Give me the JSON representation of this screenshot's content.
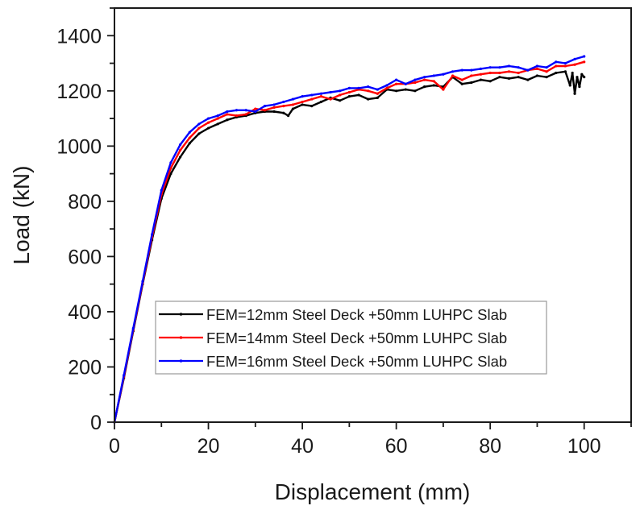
{
  "chart_data": {
    "type": "line",
    "title": "",
    "xlabel": "Displacement (mm)",
    "ylabel": "Load (kN)",
    "xlim": [
      0,
      110
    ],
    "ylim": [
      0,
      1500
    ],
    "xticks": [
      0,
      20,
      40,
      60,
      80,
      100
    ],
    "yticks": [
      0,
      200,
      400,
      600,
      800,
      1000,
      1200,
      1400
    ],
    "x_minor_step": 10,
    "y_minor_step": 100,
    "grid": false,
    "legend_position": "lower right (inside plot, center-bottom)",
    "series": [
      {
        "name": "FEM=12mm Steel Deck +50mm LUHPC Slab",
        "color": "#000000",
        "x": [
          0,
          2,
          4,
          6,
          8,
          10,
          12,
          14,
          16,
          18,
          20,
          22,
          24,
          26,
          28,
          30,
          32,
          34,
          36,
          37,
          38,
          40,
          42,
          44,
          46,
          48,
          50,
          52,
          54,
          56,
          58,
          60,
          62,
          64,
          66,
          68,
          70,
          72,
          74,
          76,
          78,
          80,
          82,
          84,
          86,
          88,
          90,
          92,
          94,
          96,
          97,
          97.5,
          98,
          98.5,
          99,
          99.5,
          100
        ],
        "y": [
          0,
          160,
          330,
          500,
          660,
          810,
          900,
          960,
          1010,
          1045,
          1065,
          1080,
          1095,
          1105,
          1110,
          1120,
          1125,
          1125,
          1120,
          1110,
          1135,
          1150,
          1145,
          1160,
          1175,
          1165,
          1180,
          1185,
          1170,
          1175,
          1205,
          1200,
          1205,
          1200,
          1215,
          1220,
          1215,
          1250,
          1225,
          1230,
          1240,
          1235,
          1250,
          1245,
          1250,
          1240,
          1255,
          1250,
          1265,
          1270,
          1220,
          1265,
          1190,
          1250,
          1215,
          1260,
          1250
        ]
      },
      {
        "name": "FEM=14mm Steel Deck +50mm LUHPC Slab",
        "color": "#ff0000",
        "x": [
          0,
          2,
          4,
          6,
          8,
          10,
          12,
          14,
          16,
          18,
          20,
          22,
          24,
          26,
          28,
          30,
          32,
          34,
          36,
          38,
          40,
          42,
          44,
          46,
          48,
          50,
          52,
          54,
          56,
          58,
          60,
          62,
          64,
          66,
          68,
          70,
          72,
          74,
          76,
          78,
          80,
          82,
          84,
          86,
          88,
          90,
          92,
          94,
          96,
          98,
          100
        ],
        "y": [
          0,
          165,
          335,
          505,
          670,
          825,
          920,
          985,
          1030,
          1065,
          1085,
          1100,
          1115,
          1110,
          1115,
          1135,
          1130,
          1140,
          1145,
          1150,
          1160,
          1170,
          1180,
          1170,
          1185,
          1195,
          1205,
          1200,
          1190,
          1210,
          1225,
          1225,
          1230,
          1240,
          1235,
          1205,
          1255,
          1240,
          1255,
          1260,
          1265,
          1265,
          1270,
          1265,
          1275,
          1280,
          1270,
          1290,
          1290,
          1295,
          1305
        ]
      },
      {
        "name": "FEM=16mm Steel Deck +50mm LUHPC Slab",
        "color": "#0000ff",
        "x": [
          0,
          2,
          4,
          6,
          8,
          10,
          12,
          14,
          16,
          18,
          20,
          22,
          24,
          26,
          28,
          30,
          32,
          34,
          36,
          38,
          40,
          42,
          44,
          46,
          48,
          50,
          52,
          54,
          56,
          58,
          60,
          62,
          64,
          66,
          68,
          70,
          72,
          74,
          76,
          78,
          80,
          82,
          84,
          86,
          88,
          90,
          92,
          94,
          96,
          98,
          100
        ],
        "y": [
          0,
          170,
          340,
          510,
          680,
          840,
          940,
          1005,
          1050,
          1080,
          1100,
          1110,
          1125,
          1130,
          1130,
          1125,
          1145,
          1150,
          1160,
          1170,
          1180,
          1185,
          1190,
          1195,
          1200,
          1210,
          1210,
          1215,
          1205,
          1220,
          1240,
          1225,
          1240,
          1250,
          1255,
          1260,
          1270,
          1275,
          1275,
          1280,
          1285,
          1285,
          1290,
          1285,
          1275,
          1290,
          1285,
          1305,
          1300,
          1315,
          1325
        ]
      }
    ]
  },
  "legend": {
    "items": [
      {
        "label": "FEM=12mm Steel Deck +50mm LUHPC Slab",
        "color": "#000000"
      },
      {
        "label": "FEM=14mm Steel Deck +50mm LUHPC Slab",
        "color": "#ff0000"
      },
      {
        "label": "FEM=16mm Steel Deck +50mm LUHPC Slab",
        "color": "#0000ff"
      }
    ]
  },
  "axes": {
    "x_title": "Displacement (mm)",
    "y_title": "Load (kN)",
    "x_tick_labels": [
      "0",
      "20",
      "40",
      "60",
      "80",
      "100"
    ],
    "y_tick_labels": [
      "0",
      "200",
      "400",
      "600",
      "800",
      "1000",
      "1200",
      "1400"
    ]
  }
}
